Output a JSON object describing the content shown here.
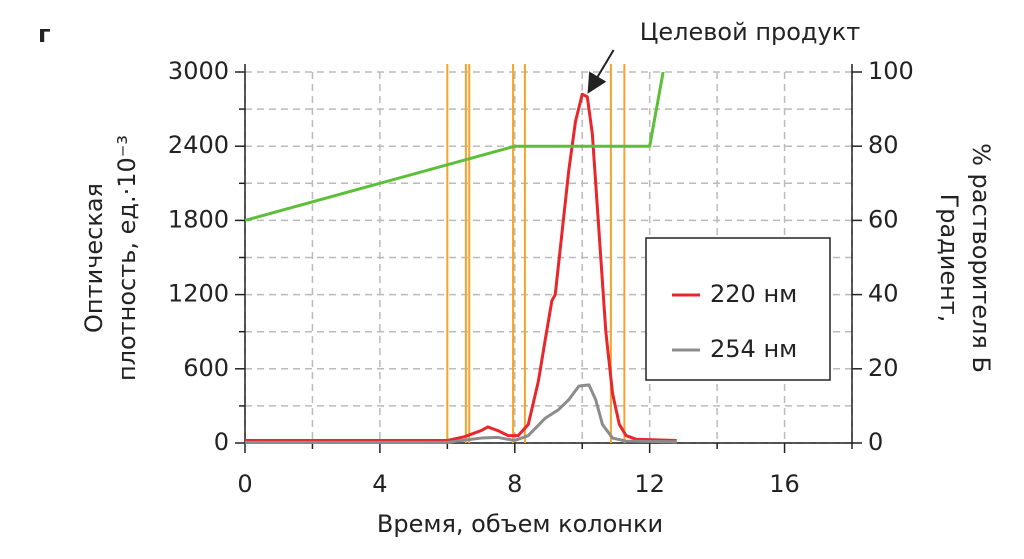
{
  "panel_label": "г",
  "chart_data": {
    "type": "line",
    "annotation": {
      "text": "Целевой продукт",
      "x": 10.1,
      "y": 2820
    },
    "xlabel": "Время, объем колонки",
    "ylabel": [
      "Оптическая",
      "плотность, ед.·10⁻³"
    ],
    "y2label": [
      "Градиент,",
      "% растворителя Б"
    ],
    "xlim": [
      0,
      18
    ],
    "xticks": [
      0,
      4,
      8,
      12,
      16
    ],
    "xminorticks": [
      2,
      6,
      10,
      14,
      18
    ],
    "ylim": [
      0,
      3000
    ],
    "yticks": [
      0,
      600,
      1200,
      1800,
      2400,
      3000
    ],
    "yminorticks": [
      300,
      900,
      1500,
      2100,
      2700
    ],
    "y2lim": [
      0,
      100
    ],
    "y2ticks": [
      0,
      20,
      40,
      60,
      80,
      100
    ],
    "grid": true,
    "fraction_lines": {
      "color": "#f5a32a",
      "x": [
        6.0,
        6.55,
        6.65,
        7.95,
        8.3,
        10.85,
        11.25
      ]
    },
    "series": [
      {
        "name": "220 нм",
        "color": "#e8262c",
        "x": [
          0,
          6,
          6.5,
          7,
          7.2,
          7.5,
          7.8,
          8.1,
          8.4,
          8.7,
          8.9,
          9.1,
          9.2,
          9.4,
          9.6,
          9.8,
          10.0,
          10.15,
          10.3,
          10.5,
          10.7,
          10.9,
          11.1,
          11.3,
          11.6,
          12.8
        ],
        "values": [
          20,
          20,
          50,
          100,
          130,
          100,
          60,
          60,
          150,
          500,
          830,
          1150,
          1200,
          1700,
          2200,
          2600,
          2820,
          2800,
          2500,
          1700,
          900,
          400,
          150,
          60,
          30,
          20
        ]
      },
      {
        "name": "254 нм",
        "color": "#8c8c8c",
        "x": [
          0,
          6,
          7,
          7.5,
          8,
          8.4,
          8.9,
          9.3,
          9.6,
          9.9,
          10.2,
          10.4,
          10.6,
          10.9,
          11.3,
          12.8
        ],
        "values": [
          5,
          5,
          40,
          45,
          20,
          60,
          200,
          270,
          350,
          460,
          470,
          350,
          150,
          40,
          15,
          10
        ]
      },
      {
        "color": "#5cbf3a",
        "axis": "y2",
        "x": [
          0,
          8,
          12,
          12.4
        ],
        "values": [
          60,
          80,
          80,
          100
        ]
      }
    ]
  }
}
